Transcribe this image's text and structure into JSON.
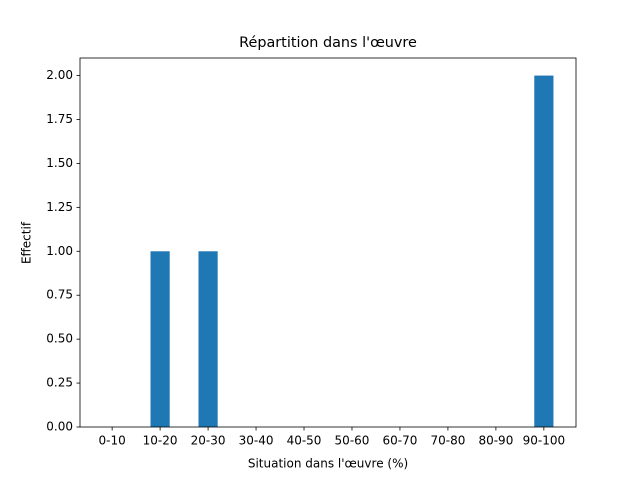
{
  "chart_data": {
    "type": "bar",
    "title": "Répartition dans l'œuvre",
    "x_label": "Situation dans l'œuvre (%)",
    "y_label": "Effectif",
    "categories": [
      "0-10",
      "10-20",
      "20-30",
      "30-40",
      "40-50",
      "50-60",
      "60-70",
      "70-80",
      "80-90",
      "90-100"
    ],
    "values": [
      0,
      1,
      1,
      0,
      0,
      0,
      0,
      0,
      0,
      2
    ],
    "color": "#1f77b4",
    "ylim": [
      0,
      2.1
    ],
    "yticks": [
      {
        "value": 0,
        "label": "0.00"
      },
      {
        "value": 0.25,
        "label": "0.25"
      },
      {
        "value": 0.5,
        "label": "0.50"
      },
      {
        "value": 0.75,
        "label": "0.75"
      },
      {
        "value": 1,
        "label": "1.00"
      },
      {
        "value": 1.25,
        "label": "1.25"
      },
      {
        "value": 1.5,
        "label": "1.50"
      },
      {
        "value": 1.75,
        "label": "1.75"
      },
      {
        "value": 2,
        "label": "2.00"
      }
    ],
    "grid": false
  }
}
